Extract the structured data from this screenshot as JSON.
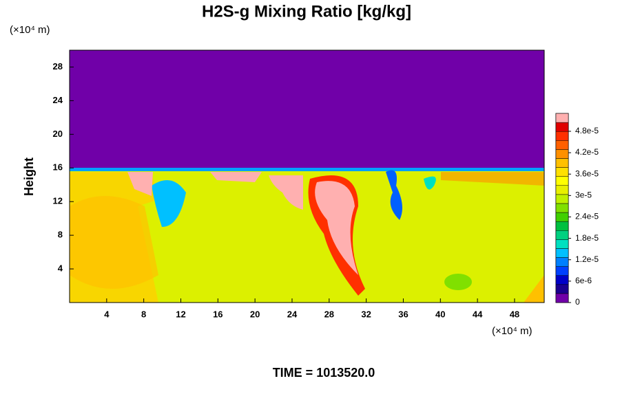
{
  "chart_data": {
    "type": "contour",
    "title": "H2S-g Mixing Ratio [kg/kg]",
    "y_label": "Height",
    "y_unit": "(×10⁴ m)",
    "x_unit": "(×10⁴ m)",
    "footer": "TIME = 1013520.0",
    "xlim": [
      0,
      51.2
    ],
    "xticks": [
      4,
      8,
      12,
      16,
      20,
      24,
      28,
      32,
      36,
      40,
      44,
      48
    ],
    "ylim": [
      0,
      30
    ],
    "yticks": [
      4,
      8,
      12,
      16,
      20,
      24,
      28
    ],
    "colorbar": {
      "clim": [
        0,
        5.3e-05
      ],
      "colors": [
        "#7000a8",
        "#1a0090",
        "#0000c8",
        "#0040ff",
        "#0080ff",
        "#00c0ff",
        "#00e0c0",
        "#00d080",
        "#00c040",
        "#40d000",
        "#80e000",
        "#c0f000",
        "#e8f000",
        "#ffff00",
        "#ffe000",
        "#ffc000",
        "#ff9000",
        "#ff6000",
        "#ff3000",
        "#e00000",
        "#ffb0b0"
      ],
      "ticks": [
        0,
        {
          "value": 6e-06,
          "label": "6e-6"
        },
        {
          "value": 1.2e-05,
          "label": "1.2e-5"
        },
        {
          "value": 1.8e-05,
          "label": "1.8e-5"
        },
        {
          "value": 2.4e-05,
          "label": "2.4e-5"
        },
        {
          "value": 3e-05,
          "label": "3e-5"
        },
        {
          "value": 3.6e-05,
          "label": "3.6e-5"
        },
        {
          "value": 4.2e-05,
          "label": "4.2e-5"
        },
        {
          "value": 4.8e-05,
          "label": "4.8e-5"
        }
      ]
    }
  }
}
